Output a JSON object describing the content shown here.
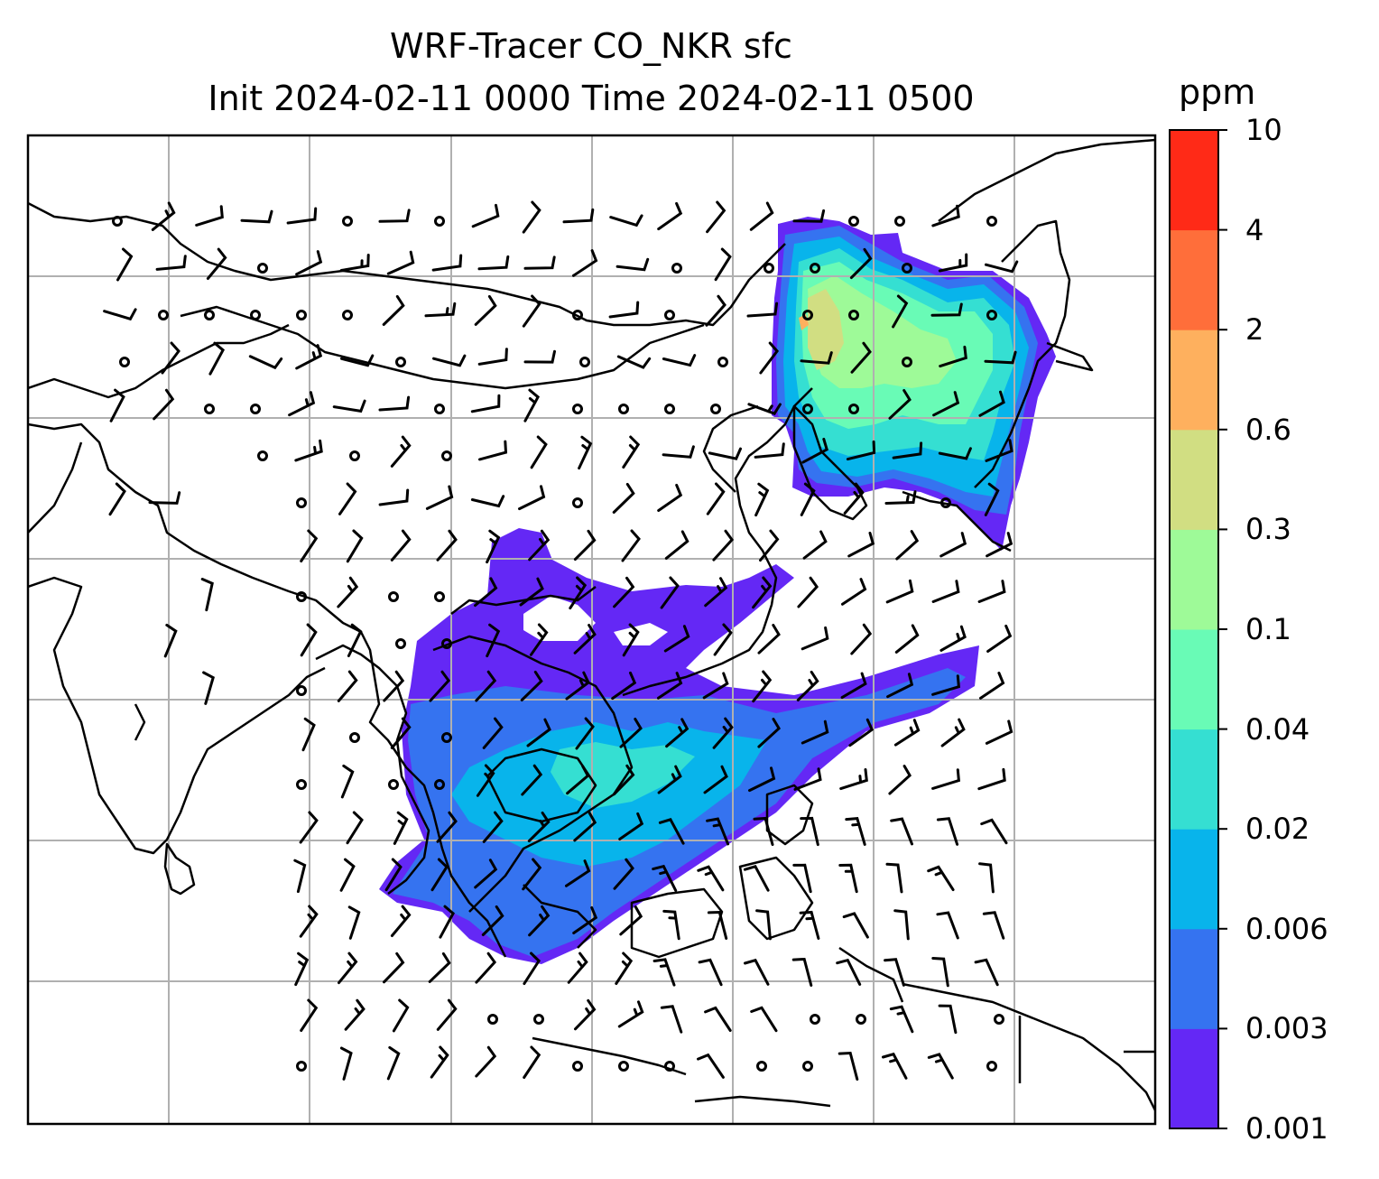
{
  "title_line1": "WRF-Tracer CO_NKR sfc",
  "title_line2": "Init 2024-02-11 0000 Time 2024-02-11 0500",
  "colorbar": {
    "unit": "ppm",
    "levels": [
      "0.001",
      "0.003",
      "0.006",
      "0.02",
      "0.04",
      "0.1",
      "0.3",
      "0.6",
      "2",
      "4",
      "10"
    ],
    "colors": [
      "#6428f5",
      "#3573f0",
      "#08b4eb",
      "#35dfd2",
      "#69fbb6",
      "#9efa98",
      "#d1de82",
      "#feb05e",
      "#ff6e3a",
      "#ff2a17"
    ]
  },
  "map": {
    "coastline_color": "#000000",
    "gridline_color": "#b0b0b0",
    "wind_barb_color": "#000000",
    "wind_barb_symbols": [
      "calm-circle",
      "half-barb",
      "full-barb"
    ]
  }
}
